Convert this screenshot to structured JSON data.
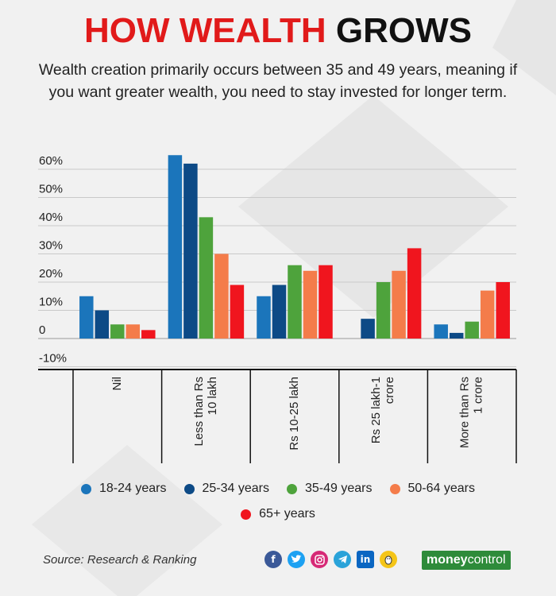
{
  "header": {
    "title_red": "HOW WEALTH",
    "title_black": "GROWS",
    "subtitle": "Wealth creation primarily occurs between 35 and 49 years, meaning if you want greater wealth, you need to stay invested for longer term."
  },
  "chart_data": {
    "type": "bar",
    "categories": [
      [
        "Nil"
      ],
      [
        "Less than Rs",
        "10 lakh"
      ],
      [
        "Rs 10-25 lakh"
      ],
      [
        "Rs 25 lakh-1",
        "crore"
      ],
      [
        "More than Rs",
        "1 crore"
      ]
    ],
    "series": [
      {
        "name": "18-24 years",
        "color": "#1b75bb",
        "values": [
          15,
          65,
          15,
          null,
          5
        ]
      },
      {
        "name": "25-34 years",
        "color": "#0d4a86",
        "values": [
          10,
          62,
          19,
          7,
          2
        ]
      },
      {
        "name": "35-49 years",
        "color": "#4ea33c",
        "values": [
          5,
          43,
          26,
          20,
          6
        ]
      },
      {
        "name": "50-64 years",
        "color": "#f47c4a",
        "values": [
          5,
          30,
          24,
          24,
          17
        ]
      },
      {
        "name": "65+ years",
        "color": "#f0151e",
        "values": [
          3,
          19,
          26,
          32,
          20
        ]
      }
    ],
    "y_ticks": [
      "60%",
      "50%",
      "40%",
      "30%",
      "20%",
      "10%",
      "0",
      "-10%"
    ],
    "y_tick_values": [
      60,
      50,
      40,
      30,
      20,
      10,
      0,
      -10
    ],
    "ylim": [
      -10,
      65
    ],
    "grid": true,
    "legend_position": "bottom"
  },
  "footer": {
    "source": "Source: Research & Ranking",
    "brand_part1": "money",
    "brand_part2": "control",
    "social_icons": [
      "facebook-icon",
      "twitter-icon",
      "instagram-icon",
      "telegram-icon",
      "linkedin-icon",
      "koo-icon"
    ]
  }
}
